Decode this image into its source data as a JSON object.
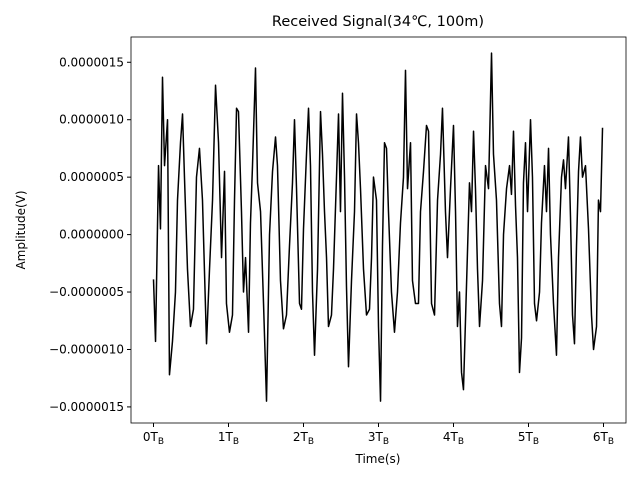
{
  "chart_data": {
    "type": "line",
    "title": "Received Signal(34℃, 100m)",
    "x_label": "Time(s)",
    "y_label": "Amplitude(V)",
    "xlim": [
      -0.3,
      6.3
    ],
    "ylim": [
      -1.64e-06,
      1.72e-06
    ],
    "xticks": [
      {
        "value": 0,
        "label": "0T",
        "subscript": "B"
      },
      {
        "value": 1,
        "label": "1T",
        "subscript": "B"
      },
      {
        "value": 2,
        "label": "2T",
        "subscript": "B"
      },
      {
        "value": 3,
        "label": "3T",
        "subscript": "B"
      },
      {
        "value": 4,
        "label": "4T",
        "subscript": "B"
      },
      {
        "value": 5,
        "label": "5T",
        "subscript": "B"
      },
      {
        "value": 6,
        "label": "6T",
        "subscript": "B"
      }
    ],
    "yticks": [
      {
        "value": -1.5e-06,
        "label": "−0.0000015"
      },
      {
        "value": -1e-06,
        "label": "−0.0000010"
      },
      {
        "value": -5e-07,
        "label": "−0.0000005"
      },
      {
        "value": 0,
        "label": "0.0000000"
      },
      {
        "value": 5e-07,
        "label": "0.0000005"
      },
      {
        "value": 1e-06,
        "label": "0.0000010"
      },
      {
        "value": 1.5e-06,
        "label": "0.0000015"
      }
    ],
    "grid": false,
    "series": [
      {
        "color": "#000000",
        "x": [
          0,
          0.027,
          0.067,
          0.093,
          0.12,
          0.147,
          0.187,
          0.213,
          0.253,
          0.293,
          0.32,
          0.36,
          0.387,
          0.413,
          0.453,
          0.493,
          0.533,
          0.573,
          0.613,
          0.653,
          0.707,
          0.747,
          0.787,
          0.827,
          0.867,
          0.907,
          0.947,
          0.973,
          1.013,
          1.053,
          1.08,
          1.107,
          1.133,
          1.173,
          1.2,
          1.227,
          1.267,
          1.293,
          1.32,
          1.36,
          1.387,
          1.427,
          1.467,
          1.507,
          1.547,
          1.587,
          1.627,
          1.653,
          1.693,
          1.733,
          1.773,
          1.813,
          1.853,
          1.88,
          1.907,
          1.947,
          1.973,
          2.0,
          2.04,
          2.067,
          2.093,
          2.12,
          2.147,
          2.187,
          2.227,
          2.253,
          2.28,
          2.307,
          2.333,
          2.373,
          2.4,
          2.44,
          2.467,
          2.493,
          2.52,
          2.547,
          2.573,
          2.6,
          2.64,
          2.68,
          2.707,
          2.733,
          2.76,
          2.8,
          2.84,
          2.88,
          2.907,
          2.933,
          2.973,
          3.0,
          3.027,
          3.053,
          3.08,
          3.107,
          3.133,
          3.173,
          3.213,
          3.253,
          3.293,
          3.333,
          3.36,
          3.387,
          3.427,
          3.453,
          3.493,
          3.533,
          3.56,
          3.6,
          3.64,
          3.667,
          3.707,
          3.747,
          3.787,
          3.827,
          3.853,
          3.893,
          3.92,
          3.96,
          4.0,
          4.027,
          4.053,
          4.08,
          4.107,
          4.133,
          4.173,
          4.213,
          4.24,
          4.267,
          4.293,
          4.32,
          4.347,
          4.387,
          4.427,
          4.467,
          4.507,
          4.533,
          4.573,
          4.613,
          4.64,
          4.667,
          4.707,
          4.747,
          4.773,
          4.8,
          4.827,
          4.853,
          4.88,
          4.907,
          4.933,
          4.96,
          4.987,
          5.027,
          5.053,
          5.08,
          5.107,
          5.147,
          5.173,
          5.213,
          5.24,
          5.267,
          5.293,
          5.333,
          5.373,
          5.4,
          5.44,
          5.467,
          5.493,
          5.533,
          5.56,
          5.587,
          5.613,
          5.64,
          5.667,
          5.693,
          5.72,
          5.76,
          5.8,
          5.84,
          5.867,
          5.907,
          5.933,
          5.96,
          5.987
        ],
        "values": [
          -3.9e-07,
          -9.3e-07,
          6e-07,
          5e-08,
          1.37e-06,
          6e-07,
          1e-06,
          -1.22e-06,
          -9.3e-07,
          -5e-07,
          3e-07,
          8e-07,
          1.05e-06,
          5e-07,
          -3e-07,
          -8e-07,
          -6.5e-07,
          5e-07,
          7.5e-07,
          3e-07,
          -9.5e-07,
          -3e-07,
          3e-07,
          1.3e-06,
          8e-07,
          -2e-07,
          5.5e-07,
          -6e-07,
          -8.5e-07,
          -7e-07,
          3e-07,
          1.1e-06,
          1.07e-06,
          2e-07,
          -5e-07,
          -2e-07,
          -8.5e-07,
          1e-07,
          6e-07,
          1.45e-06,
          4.5e-07,
          2e-07,
          -6e-07,
          -1.45e-06,
          0,
          5.5e-07,
          8.5e-07,
          6e-07,
          -4e-07,
          -8.2e-07,
          -7e-07,
          -1e-07,
          4.5e-07,
          1e-06,
          4e-07,
          -6e-07,
          -6.5e-07,
          5e-08,
          7e-07,
          1.1e-06,
          6e-07,
          -5e-07,
          -1.05e-06,
          -3e-07,
          1.07e-06,
          7e-07,
          2e-07,
          -2e-07,
          -8e-07,
          -7e-07,
          -3e-07,
          5e-07,
          1.05e-06,
          2e-07,
          1.23e-06,
          5e-07,
          -4.5e-07,
          -1.15e-06,
          -4e-07,
          2e-07,
          1.05e-06,
          8e-07,
          4e-07,
          -3e-07,
          -7e-07,
          -6.5e-07,
          -2e-07,
          5e-07,
          3e-07,
          -8e-07,
          -1.45e-06,
          -1e-07,
          8e-07,
          7.5e-07,
          2e-07,
          -5e-07,
          -8.5e-07,
          -5e-07,
          1e-07,
          5e-07,
          1.43e-06,
          4e-07,
          8e-07,
          -4e-07,
          -6e-07,
          -6e-07,
          2e-07,
          5.5e-07,
          9.5e-07,
          9e-07,
          -6e-07,
          -7e-07,
          3e-07,
          7e-07,
          1.1e-06,
          2e-07,
          -2e-07,
          4e-07,
          9.5e-07,
          2e-07,
          -8e-07,
          -5e-07,
          -1.2e-06,
          -1.35e-06,
          -4.5e-07,
          4.5e-07,
          2e-07,
          9e-07,
          4e-07,
          -3e-07,
          -8e-07,
          -4e-07,
          6e-07,
          4e-07,
          1.58e-06,
          7e-07,
          3e-07,
          -6e-07,
          -8e-07,
          0,
          4e-07,
          6e-07,
          3.5e-07,
          9e-07,
          2.5e-07,
          -2e-07,
          -1.2e-06,
          -9e-07,
          4.5e-07,
          8e-07,
          2e-07,
          1e-06,
          5e-07,
          -6e-07,
          -7.5e-07,
          -5e-07,
          1e-07,
          6e-07,
          2e-07,
          7.5e-07,
          0,
          -6e-07,
          -1.05e-06,
          -2e-07,
          5e-07,
          6.5e-07,
          4e-07,
          8.5e-07,
          1.5e-07,
          -7e-07,
          -9.5e-07,
          -1e-07,
          5.5e-07,
          8.5e-07,
          5e-07,
          6e-07,
          5e-08,
          -7e-07,
          -1e-06,
          -8e-07,
          3e-07,
          2e-07,
          9.3e-07
        ]
      }
    ]
  }
}
